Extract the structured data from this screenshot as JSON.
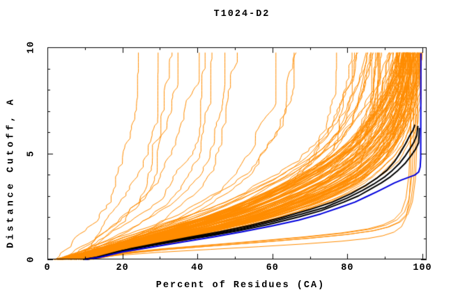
{
  "chart_data": {
    "type": "line",
    "title": "T1024-D2",
    "xlabel": "Percent of Residues (CA)",
    "ylabel": "Distance Cutoff, A",
    "xlim": [
      0,
      100
    ],
    "ylim": [
      0,
      10
    ],
    "grid": false,
    "legend": false,
    "axis_color": "#000000",
    "background_color": "#ffffff",
    "x_major_ticks": [
      0,
      20,
      40,
      60,
      80,
      100
    ],
    "x_minor_ticks": [
      10,
      30,
      50,
      70,
      90
    ],
    "y_major_ticks": [
      0,
      5,
      10
    ],
    "y_minor_ticks": [
      1,
      2,
      3,
      4,
      6,
      7,
      8,
      9
    ],
    "colors": {
      "ensemble": "#ff8c00",
      "best_models": "#000000",
      "reference_model": "#0000dd"
    },
    "reference_series": {
      "name": "reference-model-curve",
      "color": "#0000dd",
      "points_pct_cutoff": [
        [
          10,
          0
        ],
        [
          14,
          0.1
        ],
        [
          20,
          0.35
        ],
        [
          28,
          0.58
        ],
        [
          36,
          0.82
        ],
        [
          44,
          1.05
        ],
        [
          52,
          1.3
        ],
        [
          60,
          1.58
        ],
        [
          67,
          1.85
        ],
        [
          73,
          2.15
        ],
        [
          78,
          2.45
        ],
        [
          82,
          2.7
        ],
        [
          85,
          2.95
        ],
        [
          88,
          3.2
        ],
        [
          90.5,
          3.42
        ],
        [
          92.5,
          3.6
        ],
        [
          94.5,
          3.75
        ],
        [
          96.5,
          3.88
        ],
        [
          98,
          3.98
        ],
        [
          99,
          4.12
        ],
        [
          99.4,
          4.35
        ],
        [
          99.55,
          4.8
        ],
        [
          99.6,
          9.72
        ]
      ]
    },
    "highlight_series": [
      {
        "name": "best-model-curve-1",
        "color": "#000000",
        "points_pct_cutoff": [
          [
            10,
            0
          ],
          [
            14,
            0.12
          ],
          [
            20,
            0.42
          ],
          [
            28,
            0.68
          ],
          [
            36,
            0.95
          ],
          [
            44,
            1.18
          ],
          [
            52,
            1.45
          ],
          [
            60,
            1.78
          ],
          [
            68,
            2.15
          ],
          [
            74,
            2.45
          ],
          [
            80,
            2.9
          ],
          [
            84,
            3.25
          ],
          [
            87,
            3.55
          ],
          [
            90,
            3.9
          ],
          [
            92,
            4.2
          ],
          [
            94,
            4.55
          ],
          [
            95.5,
            4.9
          ],
          [
            96.8,
            5.25
          ],
          [
            97.8,
            5.55
          ],
          [
            98.5,
            5.85
          ],
          [
            98.8,
            6.3
          ]
        ]
      },
      {
        "name": "best-model-curve-2",
        "color": "#000000",
        "points_pct_cutoff": [
          [
            10.5,
            0
          ],
          [
            15,
            0.15
          ],
          [
            22,
            0.5
          ],
          [
            30,
            0.78
          ],
          [
            38,
            1.05
          ],
          [
            46,
            1.3
          ],
          [
            54,
            1.6
          ],
          [
            62,
            1.95
          ],
          [
            70,
            2.35
          ],
          [
            76,
            2.7
          ],
          [
            81,
            3.1
          ],
          [
            85,
            3.5
          ],
          [
            88,
            3.85
          ],
          [
            90.5,
            4.2
          ],
          [
            92.5,
            4.6
          ],
          [
            94,
            5.0
          ],
          [
            95.5,
            5.45
          ],
          [
            96.5,
            5.8
          ],
          [
            97.5,
            6.1
          ],
          [
            98.0,
            6.35
          ]
        ]
      },
      {
        "name": "best-model-curve-3",
        "color": "#000000",
        "points_pct_cutoff": [
          [
            9.5,
            0
          ],
          [
            13,
            0.1
          ],
          [
            19,
            0.38
          ],
          [
            27,
            0.62
          ],
          [
            35,
            0.88
          ],
          [
            43,
            1.1
          ],
          [
            51,
            1.35
          ],
          [
            59,
            1.65
          ],
          [
            67,
            2.0
          ],
          [
            73,
            2.3
          ],
          [
            79,
            2.7
          ],
          [
            83,
            3.0
          ],
          [
            86,
            3.3
          ],
          [
            89,
            3.6
          ],
          [
            91.5,
            3.9
          ],
          [
            93.5,
            4.2
          ],
          [
            95.5,
            4.55
          ],
          [
            97,
            4.9
          ],
          [
            98.2,
            5.2
          ],
          [
            99.0,
            5.5
          ],
          [
            99.2,
            6.2
          ]
        ]
      }
    ],
    "ensemble": {
      "name": "server-model-curves",
      "color": "#ff8c00",
      "count": 118,
      "seed": 1337,
      "x_start_range": [
        1.5,
        11
      ],
      "cutoff_max": 9.75,
      "cutoff_step": 0.15,
      "stretch_range": [
        0.75,
        1.3
      ],
      "template_cutoff_pct": [
        [
          0,
          10
        ],
        [
          0.5,
          22
        ],
        [
          1,
          33
        ],
        [
          1.5,
          45
        ],
        [
          2,
          55
        ],
        [
          2.5,
          63
        ],
        [
          3,
          70
        ],
        [
          3.5,
          76
        ],
        [
          4,
          81
        ],
        [
          4.5,
          85
        ],
        [
          5,
          88
        ],
        [
          5.5,
          90.5
        ],
        [
          6,
          92.5
        ],
        [
          6.5,
          94
        ],
        [
          7,
          95.2
        ],
        [
          7.5,
          96.2
        ],
        [
          8,
          97
        ],
        [
          8.5,
          97.7
        ],
        [
          9,
          98.3
        ],
        [
          9.5,
          98.8
        ],
        [
          9.8,
          99
        ]
      ],
      "groups": [
        {
          "name": "good",
          "weight": 0.52,
          "x_top_range": [
            95.5,
            100.2
          ],
          "noise": 0.5
        },
        {
          "name": "medium",
          "weight": 0.27,
          "x_top_range": [
            87,
            99
          ],
          "noise": 0.9
        },
        {
          "name": "bad",
          "weight": 0.21,
          "x_top_range": [
            24,
            92
          ],
          "noise": 1.5
        }
      ]
    },
    "low_outliers": {
      "name": "low-outlier-curves",
      "color": "#ff8c00",
      "count": 5,
      "seed": 99,
      "x_jitter": 1.6,
      "y_scale_range": [
        0.8,
        1.35
      ],
      "base_points_pct_cutoff": [
        [
          12,
          0
        ],
        [
          20,
          0.22
        ],
        [
          32,
          0.4
        ],
        [
          45,
          0.55
        ],
        [
          58,
          0.7
        ],
        [
          70,
          0.85
        ],
        [
          80,
          1.0
        ],
        [
          87,
          1.15
        ],
        [
          91,
          1.3
        ],
        [
          94,
          1.5
        ],
        [
          96,
          1.8
        ],
        [
          97.2,
          2.3
        ],
        [
          98,
          3.2
        ],
        [
          98.4,
          4.6
        ],
        [
          98.6,
          9.55
        ]
      ]
    }
  }
}
